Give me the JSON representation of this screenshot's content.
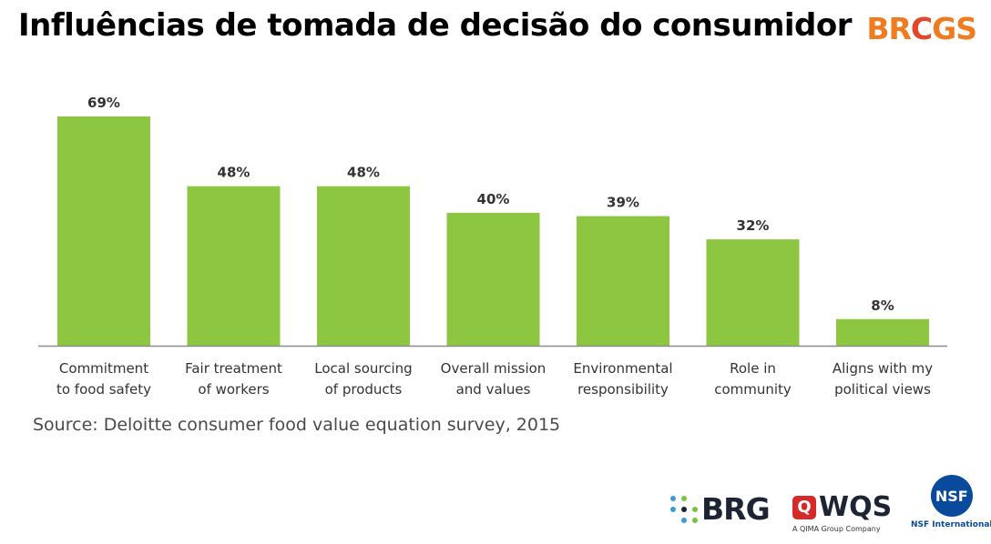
{
  "title": "Influências de tomada de decisão do consumidor",
  "brand_logo": {
    "text_before": "BR",
    "text_mark": "C",
    "text_after": "GS",
    "color": "#f07c22",
    "mark_color": "#e3472a"
  },
  "source": "Source: Deloitte consumer food value equation survey, 2015",
  "partner_logos": {
    "brg": {
      "text": "BRG",
      "icon": "dot-grid-icon",
      "colors": [
        "#1d2433",
        "#3a9bd6",
        "#7ac142"
      ]
    },
    "wqs": {
      "text": "WQS",
      "mark": "Q",
      "subtitle": "A QIMA Group Company",
      "color": "#d42a2a"
    },
    "nsf": {
      "mark": "NSF",
      "subtitle": "NSF International",
      "color": "#0a4a9c"
    }
  },
  "chart_data": {
    "type": "bar",
    "categories": [
      [
        "Commitment",
        "to food safety"
      ],
      [
        "Fair treatment",
        "of workers"
      ],
      [
        "Local sourcing",
        "of products"
      ],
      [
        "Overall mission",
        "and values"
      ],
      [
        "Environmental",
        "responsibility"
      ],
      [
        "Role in",
        "community"
      ],
      [
        "Aligns with my",
        "political views"
      ]
    ],
    "values": [
      69,
      48,
      48,
      40,
      39,
      32,
      8
    ],
    "value_labels": [
      "69%",
      "48%",
      "48%",
      "40%",
      "39%",
      "32%",
      "8%"
    ],
    "ylim": [
      0,
      69
    ],
    "grid": false,
    "bar_color": "#8dc641",
    "axis_color": "#8c8c8c"
  }
}
